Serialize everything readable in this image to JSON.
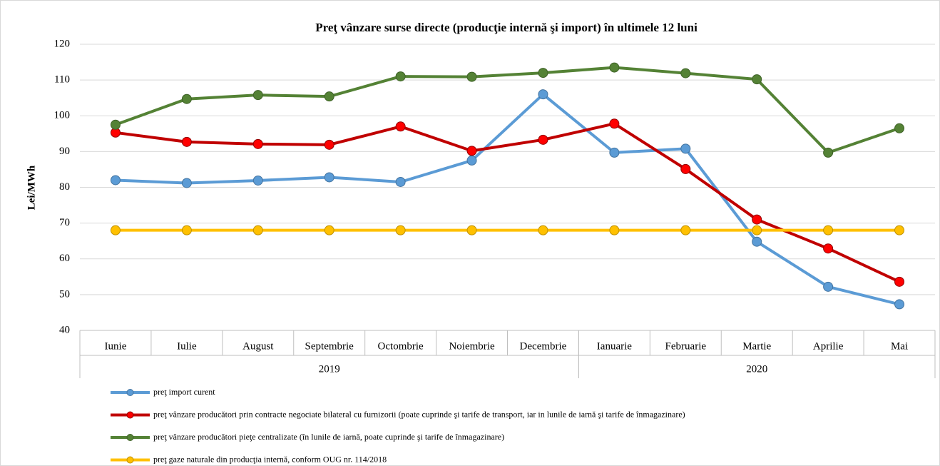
{
  "chart_data": {
    "type": "line",
    "title": "Preţ vânzare surse directe (producţie internă şi import) în ultimele 12 luni",
    "y_label": "Lei/MWh",
    "categories": [
      "Iunie",
      "Iulie",
      "August",
      "Septembrie",
      "Octombrie",
      "Noiembrie",
      "Decembrie",
      "Ianuarie",
      "Februarie",
      "Martie",
      "Aprilie",
      "Mai"
    ],
    "category_groups": [
      {
        "label": "2019",
        "span": 7
      },
      {
        "label": "2020",
        "span": 5
      }
    ],
    "ylim": [
      40,
      120
    ],
    "yticks": [
      40,
      50,
      60,
      70,
      80,
      90,
      100,
      110,
      120
    ],
    "grid": true,
    "legend": "bottom",
    "series": [
      {
        "name": "preţ import curent",
        "color": "#5b9bd5",
        "values": [
          82,
          81.2,
          81.9,
          82.8,
          81.5,
          87.5,
          106,
          89.7,
          90.8,
          64.8,
          52.2,
          47.3
        ]
      },
      {
        "name": "preţ vânzare producători prin contracte negociate bilateral cu furnizorii (poate cuprinde şi tarife de transport, iar in lunile de iarnă şi tarife de înmagazinare)",
        "color": "#c00000",
        "values": [
          95.3,
          92.7,
          92.1,
          91.9,
          97.0,
          90.2,
          93.3,
          97.8,
          85.1,
          71.0,
          62.9,
          53.6
        ]
      },
      {
        "name": "preţ vânzare producători pieţe centralizate (în lunile de iarnă, poate cuprinde şi tarife de înmagazinare)",
        "color": "#548235",
        "values": [
          97.5,
          104.7,
          105.8,
          105.4,
          111.0,
          110.9,
          112.0,
          113.5,
          111.9,
          110.2,
          89.7,
          96.5
        ]
      },
      {
        "name": "preţ gaze naturale din producţia internă, conform OUG nr. 114/2018",
        "color": "#ffc000",
        "values": [
          68,
          68,
          68,
          68,
          68,
          68,
          68,
          68,
          68,
          68,
          68,
          68
        ]
      }
    ]
  }
}
